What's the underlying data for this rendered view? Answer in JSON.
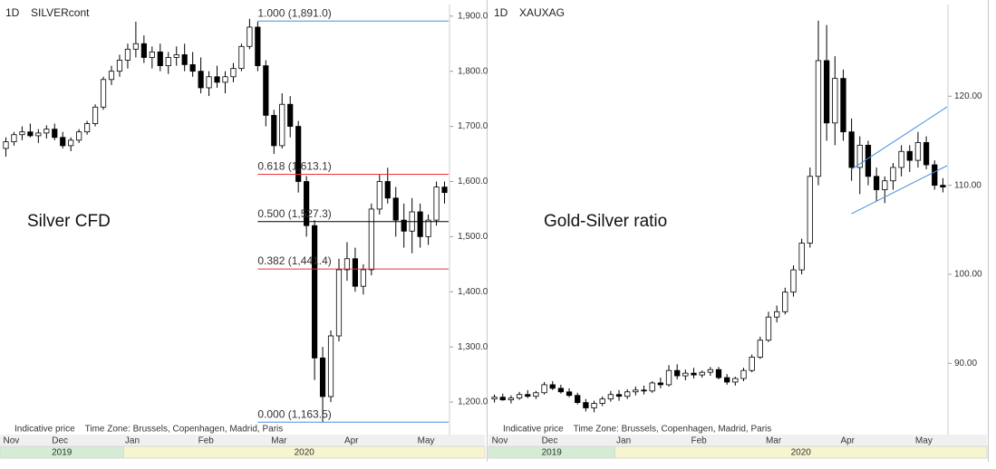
{
  "chart_data": [
    {
      "type": "candlestick",
      "interval": "1D",
      "symbol": "SILVERcont",
      "annotation": "Silver CFD",
      "footer": "Indicative price    Time Zone: Brussels, Copenhagen, Madrid, Paris",
      "categories": [
        "Nov",
        null,
        null,
        null,
        null,
        null,
        "Dec",
        null,
        null,
        null,
        null,
        null,
        null,
        null,
        null,
        "Jan",
        null,
        null,
        null,
        null,
        null,
        null,
        null,
        null,
        "Feb",
        null,
        null,
        null,
        null,
        null,
        null,
        null,
        null,
        "Mar",
        null,
        null,
        null,
        null,
        null,
        null,
        null,
        null,
        "Apr",
        null,
        null,
        null,
        null,
        null,
        null,
        null,
        null,
        "May",
        null,
        null,
        null
      ],
      "year_groups": [
        {
          "label": "2019",
          "first": "Nov"
        },
        {
          "label": "2020",
          "first": "Jan"
        }
      ],
      "open": [
        1660,
        1672,
        1685,
        1690,
        1683,
        1688,
        1695,
        1680,
        1665,
        1675,
        1690,
        1705,
        1735,
        1785,
        1800,
        1820,
        1840,
        1850,
        1825,
        1835,
        1810,
        1825,
        1830,
        1812,
        1800,
        1770,
        1790,
        1780,
        1790,
        1805,
        1845,
        1880,
        1810,
        1720,
        1665,
        1740,
        1700,
        1600,
        1520,
        1280,
        1210,
        1320,
        1440,
        1460,
        1410,
        1440,
        1550,
        1600,
        1570,
        1530,
        1510,
        1545,
        1500,
        1530,
        1590
      ],
      "high": [
        1680,
        1690,
        1700,
        1705,
        1695,
        1702,
        1705,
        1690,
        1680,
        1695,
        1710,
        1740,
        1790,
        1810,
        1830,
        1850,
        1890,
        1865,
        1845,
        1850,
        1835,
        1845,
        1850,
        1835,
        1825,
        1800,
        1810,
        1800,
        1815,
        1850,
        1895,
        1890,
        1820,
        1730,
        1760,
        1755,
        1710,
        1610,
        1530,
        1300,
        1330,
        1460,
        1490,
        1480,
        1450,
        1560,
        1613,
        1625,
        1590,
        1560,
        1570,
        1560,
        1540,
        1600,
        1600
      ],
      "low": [
        1645,
        1665,
        1675,
        1680,
        1670,
        1678,
        1675,
        1660,
        1655,
        1670,
        1685,
        1700,
        1730,
        1775,
        1790,
        1805,
        1825,
        1815,
        1805,
        1800,
        1795,
        1810,
        1800,
        1790,
        1760,
        1755,
        1770,
        1760,
        1780,
        1800,
        1840,
        1800,
        1700,
        1650,
        1660,
        1680,
        1580,
        1500,
        1240,
        1163,
        1200,
        1310,
        1420,
        1400,
        1395,
        1430,
        1540,
        1560,
        1500,
        1480,
        1470,
        1480,
        1485,
        1520,
        1560
      ],
      "close": [
        1672,
        1685,
        1690,
        1683,
        1688,
        1695,
        1680,
        1665,
        1675,
        1690,
        1705,
        1735,
        1785,
        1800,
        1820,
        1840,
        1850,
        1825,
        1835,
        1810,
        1825,
        1830,
        1812,
        1800,
        1770,
        1790,
        1780,
        1790,
        1805,
        1845,
        1880,
        1810,
        1720,
        1665,
        1740,
        1700,
        1600,
        1520,
        1280,
        1210,
        1320,
        1440,
        1460,
        1410,
        1440,
        1550,
        1600,
        1570,
        1530,
        1510,
        1545,
        1500,
        1530,
        1590,
        1580
      ],
      "ylim": [
        1141,
        1921
      ],
      "yticks": [
        {
          "value": 1200,
          "label": "1,200.0"
        },
        {
          "value": 1300,
          "label": "1,300.0"
        },
        {
          "value": 1400,
          "label": "1,400.0"
        },
        {
          "value": 1500,
          "label": "1,500.0"
        },
        {
          "value": 1600,
          "label": "1,600.0"
        },
        {
          "value": 1700,
          "label": "1,700.0"
        },
        {
          "value": 1800,
          "label": "1,800.0"
        },
        {
          "value": 1900,
          "label": "1,900.0"
        }
      ],
      "fib": [
        {
          "label": "1.000 (1,891.0)",
          "value": 1891,
          "color": "#4a90d9"
        },
        {
          "label": "0.618 (1,613.1)",
          "value": 1613.1,
          "color": "#e8343c"
        },
        {
          "label": "0.500 (1,527.3)",
          "value": 1527.3,
          "color": "#000000"
        },
        {
          "label": "0.382 (1,441.4)",
          "value": 1441.4,
          "color": "#e8343c"
        },
        {
          "label": "0.000 (1,163.5)",
          "value": 1163.5,
          "color": "#4a90d9"
        }
      ]
    },
    {
      "type": "candlestick",
      "interval": "1D",
      "symbol": "XAUXAG",
      "annotation": "Gold-Silver ratio",
      "footer": "Indicative price    Time Zone: Brussels, Copenhagen, Madrid, Paris",
      "categories": [
        "Nov",
        null,
        null,
        null,
        null,
        null,
        "Dec",
        null,
        null,
        null,
        null,
        null,
        null,
        null,
        null,
        "Jan",
        null,
        null,
        null,
        null,
        null,
        null,
        null,
        null,
        "Feb",
        null,
        null,
        null,
        null,
        null,
        null,
        null,
        null,
        "Mar",
        null,
        null,
        null,
        null,
        null,
        null,
        null,
        null,
        "Apr",
        null,
        null,
        null,
        null,
        null,
        null,
        null,
        null,
        "May",
        null,
        null,
        null
      ],
      "year_groups": [
        {
          "label": "2019",
          "first": "Nov"
        },
        {
          "label": "2020",
          "first": "Jan"
        }
      ],
      "open": [
        86.0,
        86.2,
        85.9,
        86.1,
        86.5,
        86.3,
        86.7,
        87.6,
        87.2,
        86.8,
        86.4,
        85.6,
        85.0,
        85.5,
        86.0,
        86.5,
        86.3,
        86.8,
        87.0,
        86.9,
        87.8,
        87.6,
        89.2,
        88.6,
        88.9,
        88.7,
        89.0,
        89.3,
        88.4,
        87.9,
        88.3,
        89.2,
        90.7,
        92.6,
        95.2,
        95.8,
        98.0,
        100.5,
        103.5,
        111.0,
        124.0,
        117.0,
        122.0,
        116.0,
        112.0,
        114.5,
        111.0,
        109.5,
        110.5,
        112.0,
        113.8,
        112.8,
        114.8,
        112.3,
        110.0
      ],
      "high": [
        86.5,
        86.6,
        86.4,
        86.8,
        87.0,
        86.9,
        87.9,
        88.0,
        87.6,
        87.2,
        86.7,
        86.0,
        85.8,
        86.3,
        86.9,
        87.0,
        87.1,
        87.4,
        87.5,
        88.0,
        88.4,
        89.8,
        89.9,
        89.3,
        89.5,
        89.2,
        89.6,
        89.6,
        88.8,
        88.5,
        89.5,
        91.0,
        93.0,
        95.8,
        96.5,
        98.5,
        101.0,
        104.0,
        112.0,
        128.5,
        128.0,
        124.5,
        123.0,
        117.5,
        115.5,
        115.0,
        112.0,
        111.0,
        112.5,
        114.5,
        114.5,
        116.0,
        115.5,
        112.8,
        110.8
      ],
      "low": [
        85.6,
        85.8,
        85.5,
        85.9,
        86.1,
        86.0,
        86.5,
        87.0,
        86.6,
        86.2,
        85.4,
        84.6,
        84.5,
        85.2,
        85.7,
        85.8,
        86.0,
        86.4,
        86.5,
        86.7,
        87.2,
        87.4,
        88.2,
        88.1,
        88.3,
        88.4,
        88.6,
        88.2,
        87.6,
        87.5,
        88.0,
        89.0,
        90.5,
        92.4,
        94.6,
        95.5,
        97.5,
        100.0,
        103.0,
        110.0,
        115.0,
        114.5,
        115.0,
        110.5,
        109.0,
        110.0,
        108.2,
        108.0,
        109.5,
        111.0,
        111.5,
        112.0,
        111.8,
        109.5,
        109.2
      ],
      "close": [
        86.2,
        85.9,
        86.1,
        86.5,
        86.3,
        86.7,
        87.6,
        87.2,
        86.8,
        86.4,
        85.6,
        85.0,
        85.5,
        86.0,
        86.5,
        86.3,
        86.8,
        87.0,
        86.9,
        87.8,
        87.6,
        89.2,
        88.6,
        88.9,
        88.7,
        89.0,
        89.3,
        88.4,
        87.9,
        88.3,
        89.2,
        90.7,
        92.6,
        95.2,
        95.8,
        98.0,
        100.5,
        103.5,
        111.0,
        124.0,
        117.0,
        122.0,
        116.0,
        112.0,
        114.5,
        111.0,
        109.5,
        110.5,
        112.0,
        113.8,
        112.8,
        114.8,
        112.3,
        110.0,
        109.8
      ],
      "ylim": [
        82,
        130.3
      ],
      "yticks": [
        {
          "value": 90,
          "label": "90.00"
        },
        {
          "value": 100,
          "label": "100.00"
        },
        {
          "value": 110,
          "label": "110.00"
        },
        {
          "value": 120,
          "label": "120.00"
        }
      ],
      "channel": {
        "color": "#4a90d9",
        "upper": [
          111.8,
          118.8
        ],
        "lower": [
          106.8,
          112.2
        ]
      }
    }
  ]
}
